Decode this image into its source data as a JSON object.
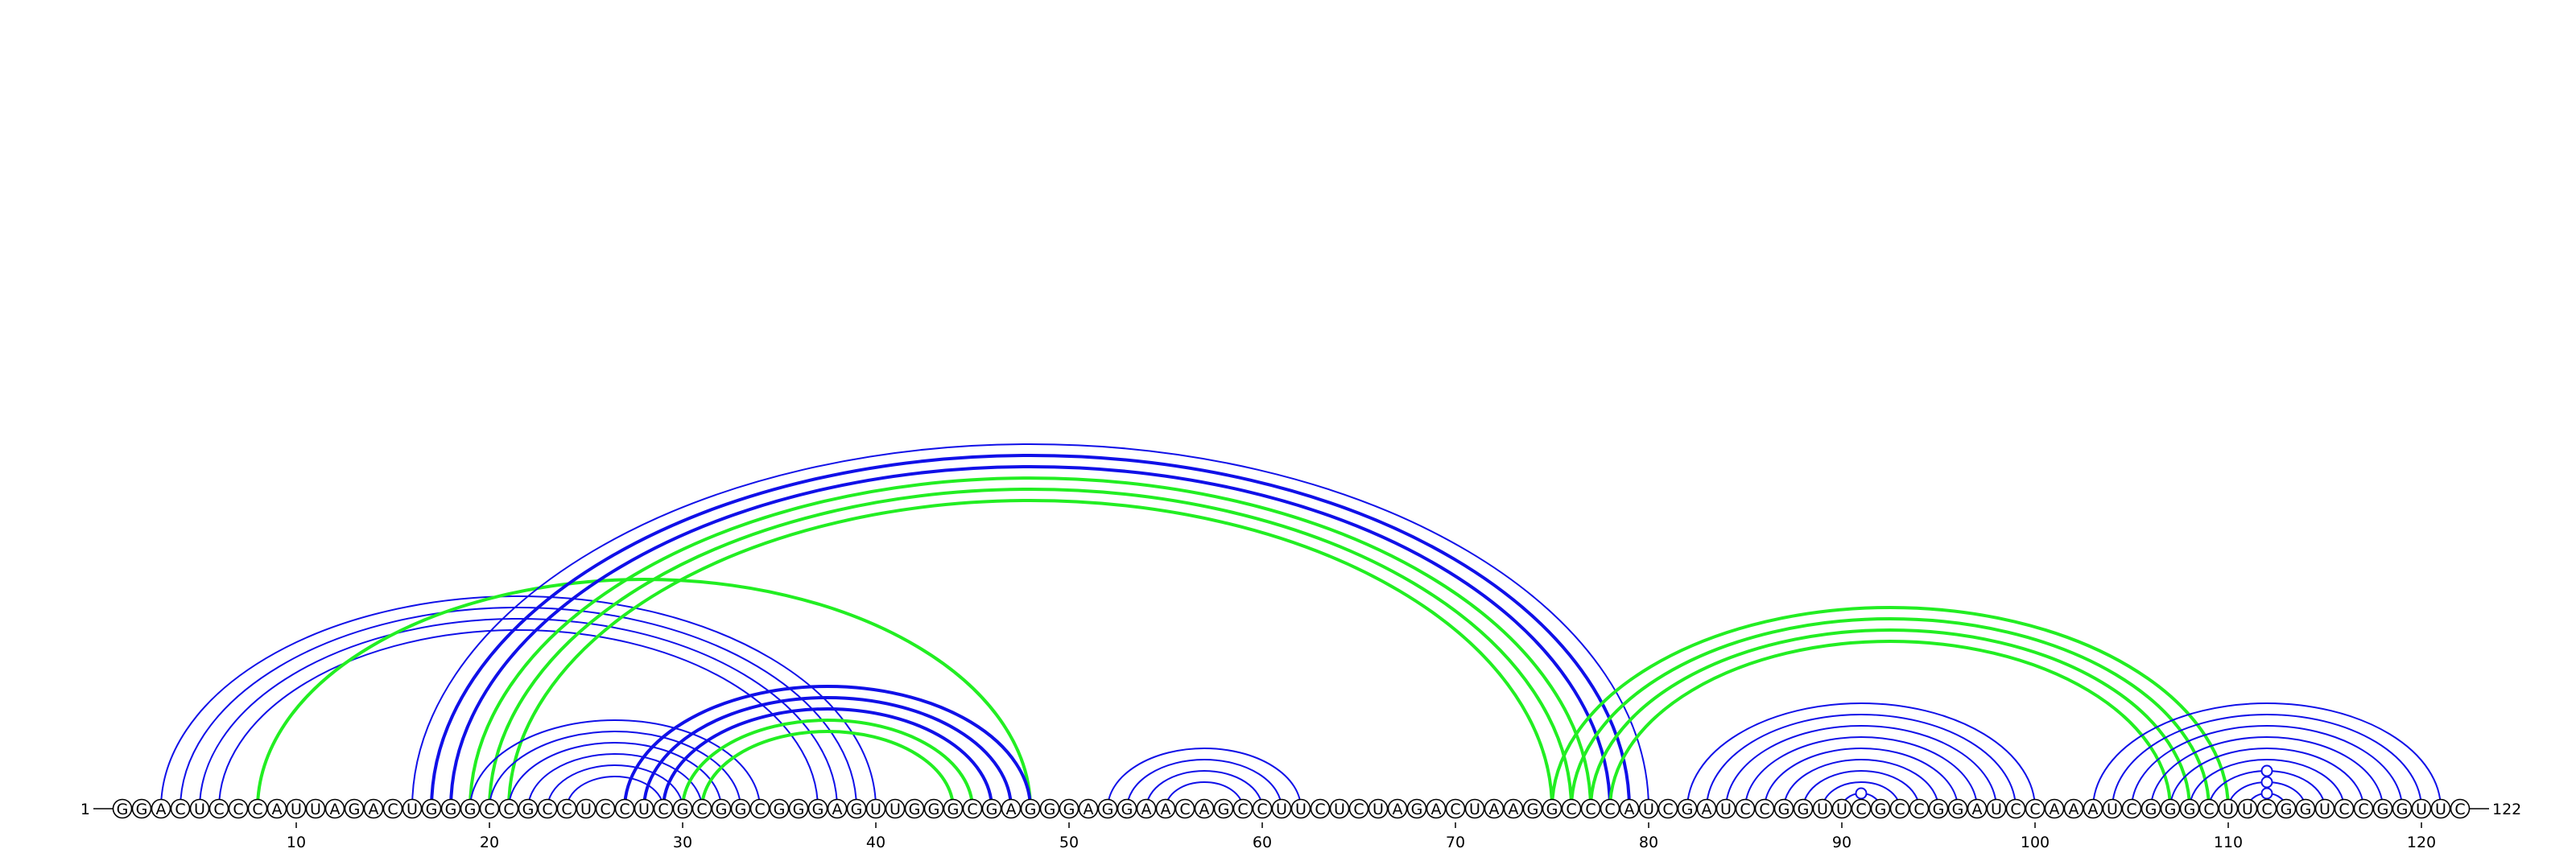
{
  "sequence": "GGACUCCCAUUAGACUGGGCCGCCUCCUCGCGGCGGGAGUUGGGCGAGGGAGGAACAGCCUUCUCUAGACUAAGGCCCAUCGAUCCGGUUCGCCGGAUCCAAAUCGGGCUUCGGUCCGGUUC",
  "start_label": "1",
  "end_label": "122",
  "ticks": [
    10,
    20,
    30,
    40,
    50,
    60,
    70,
    80,
    90,
    100,
    110,
    120
  ],
  "colors": {
    "blue": "#1010e8",
    "green": "#22ee22"
  },
  "arcs": [
    {
      "i": 3,
      "j": 40,
      "color": "blue",
      "w": 2
    },
    {
      "i": 4,
      "j": 39,
      "color": "blue",
      "w": 2
    },
    {
      "i": 5,
      "j": 38,
      "color": "blue",
      "w": 2
    },
    {
      "i": 6,
      "j": 37,
      "color": "blue",
      "w": 2
    },
    {
      "i": 8,
      "j": 48,
      "color": "green",
      "w": 4
    },
    {
      "i": 16,
      "j": 80,
      "color": "blue",
      "w": 2
    },
    {
      "i": 17,
      "j": 79,
      "color": "blue",
      "w": 4
    },
    {
      "i": 18,
      "j": 78,
      "color": "blue",
      "w": 4
    },
    {
      "i": 19,
      "j": 77,
      "color": "green",
      "w": 4
    },
    {
      "i": 20,
      "j": 76,
      "color": "green",
      "w": 4
    },
    {
      "i": 21,
      "j": 75,
      "color": "green",
      "w": 4
    },
    {
      "i": 19,
      "j": 34,
      "color": "blue",
      "w": 2
    },
    {
      "i": 20,
      "j": 33,
      "color": "blue",
      "w": 2
    },
    {
      "i": 21,
      "j": 32,
      "color": "blue",
      "w": 2
    },
    {
      "i": 22,
      "j": 31,
      "color": "blue",
      "w": 2
    },
    {
      "i": 23,
      "j": 30,
      "color": "blue",
      "w": 2
    },
    {
      "i": 24,
      "j": 29,
      "color": "blue",
      "w": 2
    },
    {
      "i": 27,
      "j": 48,
      "color": "blue",
      "w": 4
    },
    {
      "i": 28,
      "j": 47,
      "color": "blue",
      "w": 4
    },
    {
      "i": 29,
      "j": 46,
      "color": "blue",
      "w": 4
    },
    {
      "i": 30,
      "j": 45,
      "color": "green",
      "w": 4
    },
    {
      "i": 31,
      "j": 44,
      "color": "green",
      "w": 4
    },
    {
      "i": 52,
      "j": 62,
      "color": "blue",
      "w": 2
    },
    {
      "i": 53,
      "j": 61,
      "color": "blue",
      "w": 2
    },
    {
      "i": 54,
      "j": 60,
      "color": "blue",
      "w": 2
    },
    {
      "i": 55,
      "j": 59,
      "color": "blue",
      "w": 2
    },
    {
      "i": 75,
      "j": 110,
      "color": "green",
      "w": 4
    },
    {
      "i": 76,
      "j": 109,
      "color": "green",
      "w": 4
    },
    {
      "i": 77,
      "j": 108,
      "color": "green",
      "w": 4
    },
    {
      "i": 78,
      "j": 107,
      "color": "green",
      "w": 4
    },
    {
      "i": 82,
      "j": 100,
      "color": "blue",
      "w": 2
    },
    {
      "i": 83,
      "j": 99,
      "color": "blue",
      "w": 2
    },
    {
      "i": 84,
      "j": 98,
      "color": "blue",
      "w": 2
    },
    {
      "i": 85,
      "j": 97,
      "color": "blue",
      "w": 2
    },
    {
      "i": 86,
      "j": 96,
      "color": "blue",
      "w": 2
    },
    {
      "i": 87,
      "j": 95,
      "color": "blue",
      "w": 2
    },
    {
      "i": 88,
      "j": 94,
      "color": "blue",
      "w": 2
    },
    {
      "i": 89,
      "j": 93,
      "color": "blue",
      "w": 2
    },
    {
      "i": 90,
      "j": 92,
      "color": "blue",
      "w": 2
    },
    {
      "i": 103,
      "j": 121,
      "color": "blue",
      "w": 2
    },
    {
      "i": 104,
      "j": 120,
      "color": "blue",
      "w": 2
    },
    {
      "i": 105,
      "j": 119,
      "color": "blue",
      "w": 2
    },
    {
      "i": 106,
      "j": 118,
      "color": "blue",
      "w": 2
    },
    {
      "i": 107,
      "j": 117,
      "color": "blue",
      "w": 2
    },
    {
      "i": 108,
      "j": 116,
      "color": "blue",
      "w": 2
    },
    {
      "i": 109,
      "j": 115,
      "color": "blue",
      "w": 2
    },
    {
      "i": 110,
      "j": 114,
      "color": "blue",
      "w": 2
    },
    {
      "i": 111,
      "j": 113,
      "color": "blue",
      "w": 2
    }
  ],
  "noncanonical_markers": [
    {
      "i": 90,
      "j": 92
    },
    {
      "i": 109,
      "j": 115
    },
    {
      "i": 110,
      "j": 114
    },
    {
      "i": 111,
      "j": 113
    }
  ]
}
